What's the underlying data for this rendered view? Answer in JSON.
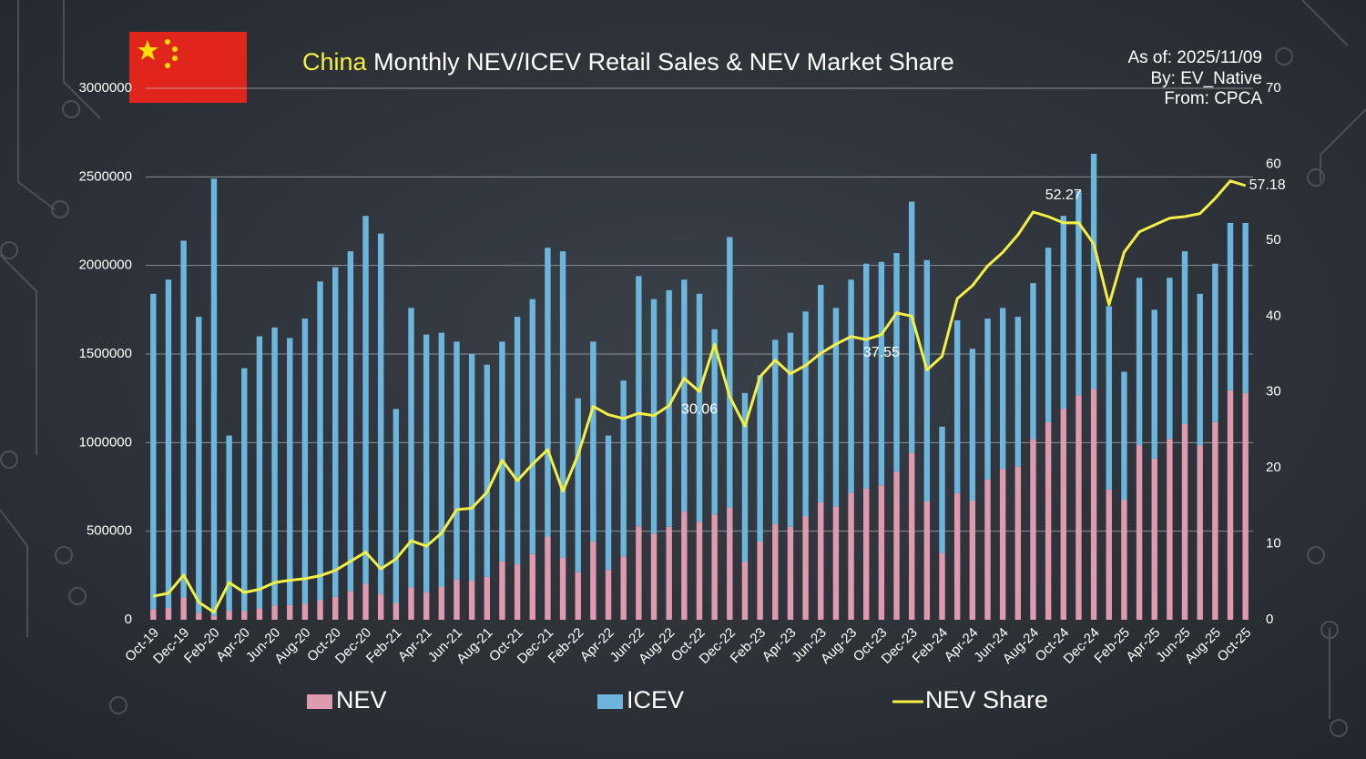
{
  "chart_data": {
    "type": "bar",
    "title_prefix": "China",
    "title": "Monthly NEV/ICEV Retail Sales & NEV Market Share",
    "notes": [
      "As of: 2025/11/09",
      "By: EV_Native",
      "From: CPCA"
    ],
    "stacked": true,
    "grid": true,
    "legend": "bottom",
    "categories": [
      "Oct-19",
      null,
      "Dec-19",
      null,
      "Feb-20",
      null,
      "Apr-20",
      null,
      "Jun-20",
      null,
      "Aug-20",
      null,
      "Oct-20",
      null,
      "Dec-20",
      null,
      "Feb-21",
      null,
      "Apr-21",
      null,
      "Jun-21",
      null,
      "Aug-21",
      null,
      "Oct-21",
      null,
      "Dec-21",
      null,
      "Feb-22",
      null,
      "Apr-22",
      null,
      "Jun-22",
      null,
      "Aug-22",
      null,
      "Oct-22",
      null,
      "Dec-22",
      null,
      "Feb-23",
      null,
      "Apr-23",
      null,
      "Jun-23",
      null,
      "Aug-23",
      null,
      "Oct-23",
      null,
      "Dec-23",
      null,
      "Feb-24",
      null,
      "Apr-24",
      null,
      "Jun-24",
      null,
      "Aug-24",
      null,
      "Oct-24",
      null,
      "Dec-24",
      null,
      "Feb-25",
      null,
      "Apr-25",
      null,
      "Jun-25",
      null,
      "Aug-25",
      null,
      "Oct-25"
    ],
    "series": [
      {
        "name": "NEV",
        "color": "#de9aae",
        "values": [
          60000,
          67000,
          126000,
          40000,
          25000,
          51000,
          51000,
          64000,
          81000,
          83000,
          92000,
          110000,
          129000,
          160000,
          203000,
          146000,
          95000,
          183000,
          156000,
          185000,
          228000,
          221000,
          242000,
          330000,
          313000,
          371000,
          470000,
          351000,
          271000,
          441000,
          281000,
          358000,
          528000,
          487000,
          525000,
          611000,
          553000,
          595000,
          635000,
          326000,
          442000,
          540000,
          525000,
          583000,
          663000,
          639000,
          716000,
          742000,
          759000,
          836000,
          944000,
          668000,
          378000,
          715000,
          673000,
          792000,
          852000,
          867000,
          1020000,
          1115000,
          1192000,
          1266000,
          1302000,
          735000,
          678000,
          986000,
          910000,
          1021000,
          1105000,
          984000,
          1116000,
          1295000,
          1281000
        ]
      },
      {
        "name": "ICEV",
        "color": "#6cb6de",
        "values": [
          1780000,
          1853000,
          2014000,
          1670000,
          2465000,
          989000,
          1369000,
          1536000,
          1569000,
          1507000,
          1608000,
          1800000,
          1861000,
          1920000,
          2077000,
          2034000,
          1095000,
          1577000,
          1454000,
          1435000,
          1342000,
          1279000,
          1198000,
          1240000,
          1397000,
          1439000,
          1630000,
          1729000,
          979000,
          1129000,
          759000,
          992000,
          1412000,
          1323000,
          1335000,
          1309000,
          1287000,
          1045000,
          1525000,
          954000,
          938000,
          1040000,
          1095000,
          1157000,
          1227000,
          1121000,
          1204000,
          1268000,
          1261000,
          1234000,
          1416000,
          1362000,
          712000,
          975000,
          857000,
          908000,
          908000,
          843000,
          880000,
          985000,
          1088000,
          1154000,
          1328000,
          1035000,
          722000,
          944000,
          840000,
          909000,
          975000,
          856000,
          894000,
          945000,
          959000
        ]
      },
      {
        "name": "NEV Share",
        "type": "line",
        "axis": "y2",
        "color": "#f3ef45",
        "values": [
          3.1,
          3.5,
          5.9,
          2.3,
          1.0,
          4.9,
          3.6,
          4.0,
          4.9,
          5.2,
          5.4,
          5.8,
          6.5,
          7.7,
          8.9,
          6.7,
          8.0,
          10.4,
          9.7,
          11.4,
          14.5,
          14.7,
          16.8,
          21.0,
          18.3,
          20.5,
          22.4,
          16.9,
          21.7,
          28.1,
          27.0,
          26.5,
          27.2,
          26.9,
          28.2,
          31.8,
          30.06,
          36.3,
          29.4,
          25.5,
          32.0,
          34.2,
          32.4,
          33.5,
          35.1,
          36.3,
          37.3,
          36.9,
          37.55,
          40.4,
          40.0,
          32.9,
          34.7,
          42.3,
          44.0,
          46.6,
          48.4,
          50.7,
          53.7,
          53.1,
          52.27,
          52.3,
          49.5,
          41.5,
          48.4,
          51.1,
          52.0,
          52.9,
          53.1,
          53.5,
          55.5,
          57.8,
          57.18
        ],
        "value_labels": [
          null,
          null,
          null,
          null,
          null,
          null,
          null,
          null,
          null,
          null,
          null,
          null,
          null,
          null,
          null,
          null,
          null,
          null,
          null,
          null,
          null,
          null,
          null,
          null,
          null,
          null,
          null,
          null,
          null,
          null,
          null,
          null,
          null,
          null,
          null,
          null,
          "30.06",
          null,
          null,
          null,
          null,
          null,
          null,
          null,
          null,
          null,
          null,
          null,
          "37.55",
          null,
          null,
          null,
          null,
          null,
          null,
          null,
          null,
          null,
          null,
          null,
          "52.27",
          null,
          null,
          null,
          null,
          null,
          null,
          null,
          null,
          null,
          null,
          null,
          "57.18"
        ]
      }
    ],
    "ylim": [
      0,
      3000000
    ],
    "yticks": [
      0,
      500000,
      1000000,
      1500000,
      2000000,
      2500000,
      3000000
    ],
    "y2lim": [
      0,
      70
    ],
    "y2ticks": [
      0,
      10,
      20,
      30,
      40,
      50,
      60,
      70
    ]
  }
}
